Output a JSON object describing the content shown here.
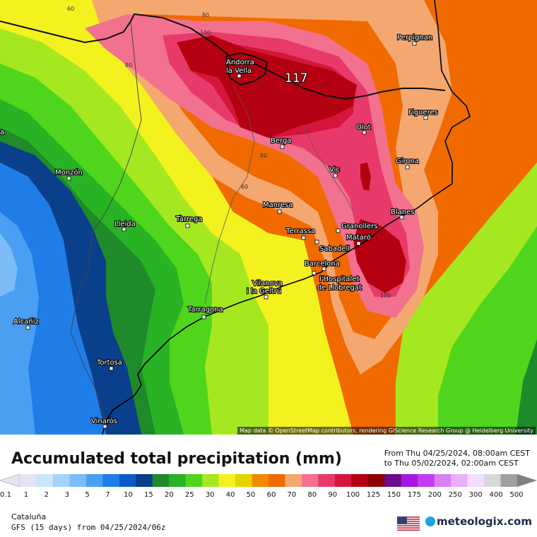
{
  "map": {
    "max_label": "117",
    "contour_labels": [
      "60",
      "80",
      "100",
      "80",
      "80",
      "60",
      "100"
    ],
    "cities": [
      {
        "name": "Perpignan"
      },
      {
        "name": "Andorra"
      },
      {
        "name": "la Vella"
      },
      {
        "name": "Figueres"
      },
      {
        "name": "Olot"
      },
      {
        "name": "Berga"
      },
      {
        "name": "Girona"
      },
      {
        "name": "Vic"
      },
      {
        "name": "Monzón"
      },
      {
        "name": "Manresa"
      },
      {
        "name": "Blanes"
      },
      {
        "name": "Lleida"
      },
      {
        "name": "Tàrrega"
      },
      {
        "name": "Terrassa"
      },
      {
        "name": "Granollers"
      },
      {
        "name": "Mataró"
      },
      {
        "name": "Sabadell"
      },
      {
        "name": "Barcelona"
      },
      {
        "name": "l'Hospitalet"
      },
      {
        "name": "de Llobregat"
      },
      {
        "name": "Vilanova"
      },
      {
        "name": "i la Geltrú"
      },
      {
        "name": "Tarragona"
      },
      {
        "name": "Alcañiz"
      },
      {
        "name": "Tortosa"
      },
      {
        "name": "Vinaròs"
      },
      {
        "name": "a"
      }
    ],
    "attribution": "Map data © OpenStreetMap contributors, rendering GIScience Research Group @ Heidelberg University"
  },
  "legend": {
    "title": "Accumulated total precipitation (mm)",
    "period_from": "From Thu 04/25/2024, 08:00am CEST",
    "period_to": "to Thu 05/02/2024, 02:00am CEST",
    "ticks": [
      "0.1",
      "1",
      "2",
      "3",
      "5",
      "7",
      "10",
      "15",
      "20",
      "25",
      "30",
      "40",
      "50",
      "60",
      "70",
      "80",
      "90",
      "100",
      "125",
      "150",
      "175",
      "200",
      "250",
      "300",
      "400",
      "500"
    ],
    "colors": [
      "#e4e4f4",
      "#c8e6fb",
      "#a4d3fb",
      "#7cbcf8",
      "#4a9ff2",
      "#1f7de8",
      "#0c5cc8",
      "#0a3f8c",
      "#1f8a2a",
      "#27b324",
      "#50d51d",
      "#a6e81f",
      "#f4f21e",
      "#e4d400",
      "#f08a00",
      "#f06a00",
      "#f4a870",
      "#f2718f",
      "#e83a6a",
      "#d4163c",
      "#b40010",
      "#8a0000",
      "#6a0a8c",
      "#a816e0",
      "#c43cf0",
      "#d880f4",
      "#e8b0f8",
      "#f4dcfc",
      "#d8d8d8",
      "#a0a0a0"
    ],
    "region": "Cataluña",
    "model": "GFS (15 days) from 04/25/2024/06z",
    "brand": "meteologix.com",
    "flag_icon": "us-flag-icon"
  }
}
